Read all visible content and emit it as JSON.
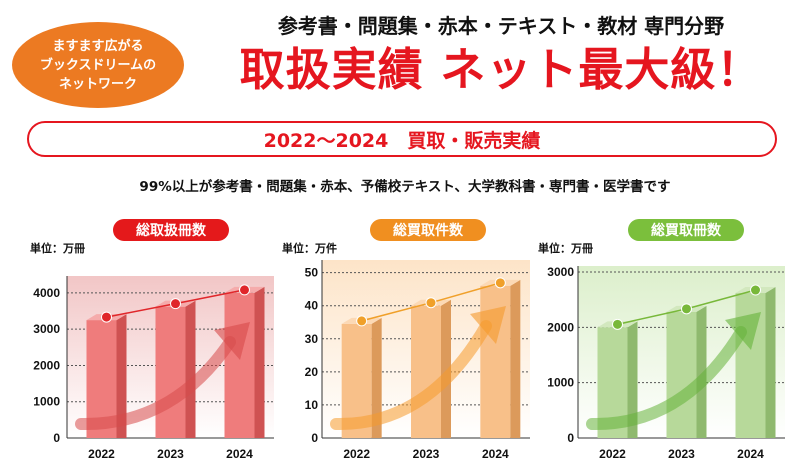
{
  "badge": {
    "lines": [
      "ますます広がる",
      "ブックスドリームの",
      "ネットワーク"
    ]
  },
  "header": {
    "tagline": "参考書・問題集・赤本・テキスト・教材 専門分野",
    "headline": "取扱実績 ネット最大級！"
  },
  "period_label": "2022〜2024　買取・販売実績",
  "description": "99%以上が参考書・問題集・赤本、予備校テキスト、大学教科書・専門書・医学書です",
  "colors": {
    "red": "#e5161f",
    "orange": "#ec7a22",
    "green": "#7bc043"
  },
  "chart_data": [
    {
      "type": "bar",
      "title": "総取扱冊数",
      "unit_label": "単位：万冊",
      "categories": [
        "2022",
        "2023",
        "2024"
      ],
      "values": [
        3250,
        3620,
        4000
      ],
      "yticks": [
        0,
        1000,
        2000,
        3000,
        4000
      ],
      "ylim": [
        0,
        4300
      ],
      "theme": {
        "title_bg": "#e4191b",
        "bar_front": "#ef7c7c",
        "bar_side": "#cf5252",
        "bar_top": "#f5abab",
        "line": "#e0262a",
        "arrow": "#d74b4b",
        "panel_top": "#f2c6c6",
        "panel_bottom": "#ffffff"
      }
    },
    {
      "type": "bar",
      "title": "総買取件数",
      "unit_label": "単位：万件",
      "categories": [
        "2022",
        "2023",
        "2024"
      ],
      "values": [
        34.5,
        40.0,
        46.0
      ],
      "yticks": [
        0,
        10,
        20,
        30,
        40,
        50
      ],
      "ylim": [
        0,
        52
      ],
      "theme": {
        "title_bg": "#f08f20",
        "bar_front": "#f8c089",
        "bar_side": "#dc9a5b",
        "bar_top": "#fcd9b5",
        "line": "#f0a02a",
        "arrow": "#f59a2c",
        "panel_top": "#fde4c8",
        "panel_bottom": "#ffffff"
      }
    },
    {
      "type": "bar",
      "title": "総買取冊数",
      "unit_label": "単位：万冊",
      "categories": [
        "2022",
        "2023",
        "2024"
      ],
      "values": [
        2000,
        2280,
        2620
      ],
      "yticks": [
        0,
        1000,
        2000,
        3000
      ],
      "ylim": [
        0,
        3000
      ],
      "theme": {
        "title_bg": "#7bbf3c",
        "bar_front": "#b7d99a",
        "bar_side": "#8fb96e",
        "bar_top": "#d2e8be",
        "line": "#78b83a",
        "arrow": "#66b33a",
        "panel_top": "#dcefcb",
        "panel_bottom": "#ffffff"
      }
    }
  ]
}
